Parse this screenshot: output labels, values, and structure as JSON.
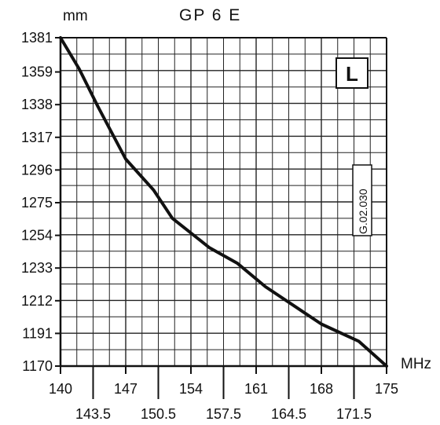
{
  "chart_data": {
    "type": "line",
    "title": "GP 6 E",
    "ylabel": "mm",
    "xlabel": "MHz",
    "badge": "L",
    "code": "G.02.030",
    "xlim": [
      140,
      175
    ],
    "ylim": [
      1170,
      1381
    ],
    "x_ticks_upper": [
      "140",
      "147",
      "154",
      "161",
      "168",
      "175"
    ],
    "x_ticks_lower": [
      "143.5",
      "150.5",
      "157.5",
      "164.5",
      "171.5"
    ],
    "y_ticks": [
      "1381",
      "1359",
      "1338",
      "1317",
      "1296",
      "1275",
      "1254",
      "1233",
      "1212",
      "1191",
      "1170"
    ],
    "grid": true,
    "series": [
      {
        "x": [
          140,
          142,
          144,
          147,
          150,
          152,
          156,
          159,
          162,
          168,
          172,
          175
        ],
        "y": [
          1381,
          1361,
          1337,
          1303,
          1283,
          1265,
          1246,
          1236,
          1221,
          1197,
          1186,
          1170
        ]
      }
    ]
  }
}
